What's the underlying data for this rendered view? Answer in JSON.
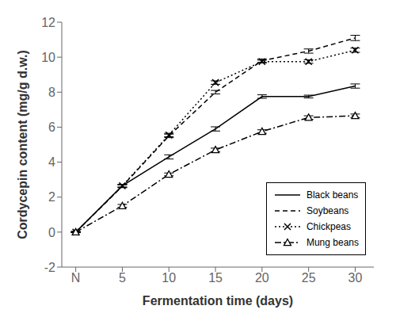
{
  "chart_data": {
    "type": "line",
    "x": [
      0,
      5,
      10,
      15,
      20,
      25,
      30
    ],
    "xlabel": "Fermentation time (days)",
    "ylabel": "Cordycepin content (mg/g d.w.)",
    "xlim": [
      -1.5,
      32
    ],
    "xticks": [
      {
        "value": 0,
        "label": "N"
      },
      5,
      10,
      15,
      20,
      25,
      30
    ],
    "ylim": [
      -2,
      12
    ],
    "yticks": [
      -2,
      0,
      2,
      4,
      6,
      8,
      10,
      12
    ],
    "grid": false,
    "legend": "lower right",
    "color": "black",
    "series": [
      {
        "name": "Black beans",
        "values": [
          0,
          2.65,
          4.3,
          5.9,
          7.75,
          7.75,
          8.35
        ],
        "yerr": [
          0.03,
          0.08,
          0.12,
          0.12,
          0.1,
          0.08,
          0.12
        ],
        "line_style": "solid",
        "marker": "none"
      },
      {
        "name": "Soybeans",
        "values": [
          0,
          2.62,
          5.5,
          8.0,
          9.8,
          10.35,
          11.1
        ],
        "yerr": [
          0.03,
          0.08,
          0.1,
          0.1,
          0.1,
          0.12,
          0.15
        ],
        "line_style": "dashed",
        "marker": "none"
      },
      {
        "name": "Chickpeas",
        "values": [
          0,
          2.65,
          5.55,
          8.55,
          9.75,
          9.75,
          10.4
        ],
        "yerr": [
          0.03,
          0.08,
          0.1,
          0.1,
          0.08,
          0.1,
          0.12
        ],
        "line_style": "dotted",
        "marker": "x"
      },
      {
        "name": "Mung beans",
        "values": [
          0,
          1.5,
          3.3,
          4.7,
          5.75,
          6.55,
          6.65
        ],
        "yerr": [
          0.03,
          0.08,
          0.08,
          0.1,
          0.1,
          0.1,
          0.1
        ],
        "line_style": "dashdot",
        "marker": "triangle"
      }
    ]
  }
}
